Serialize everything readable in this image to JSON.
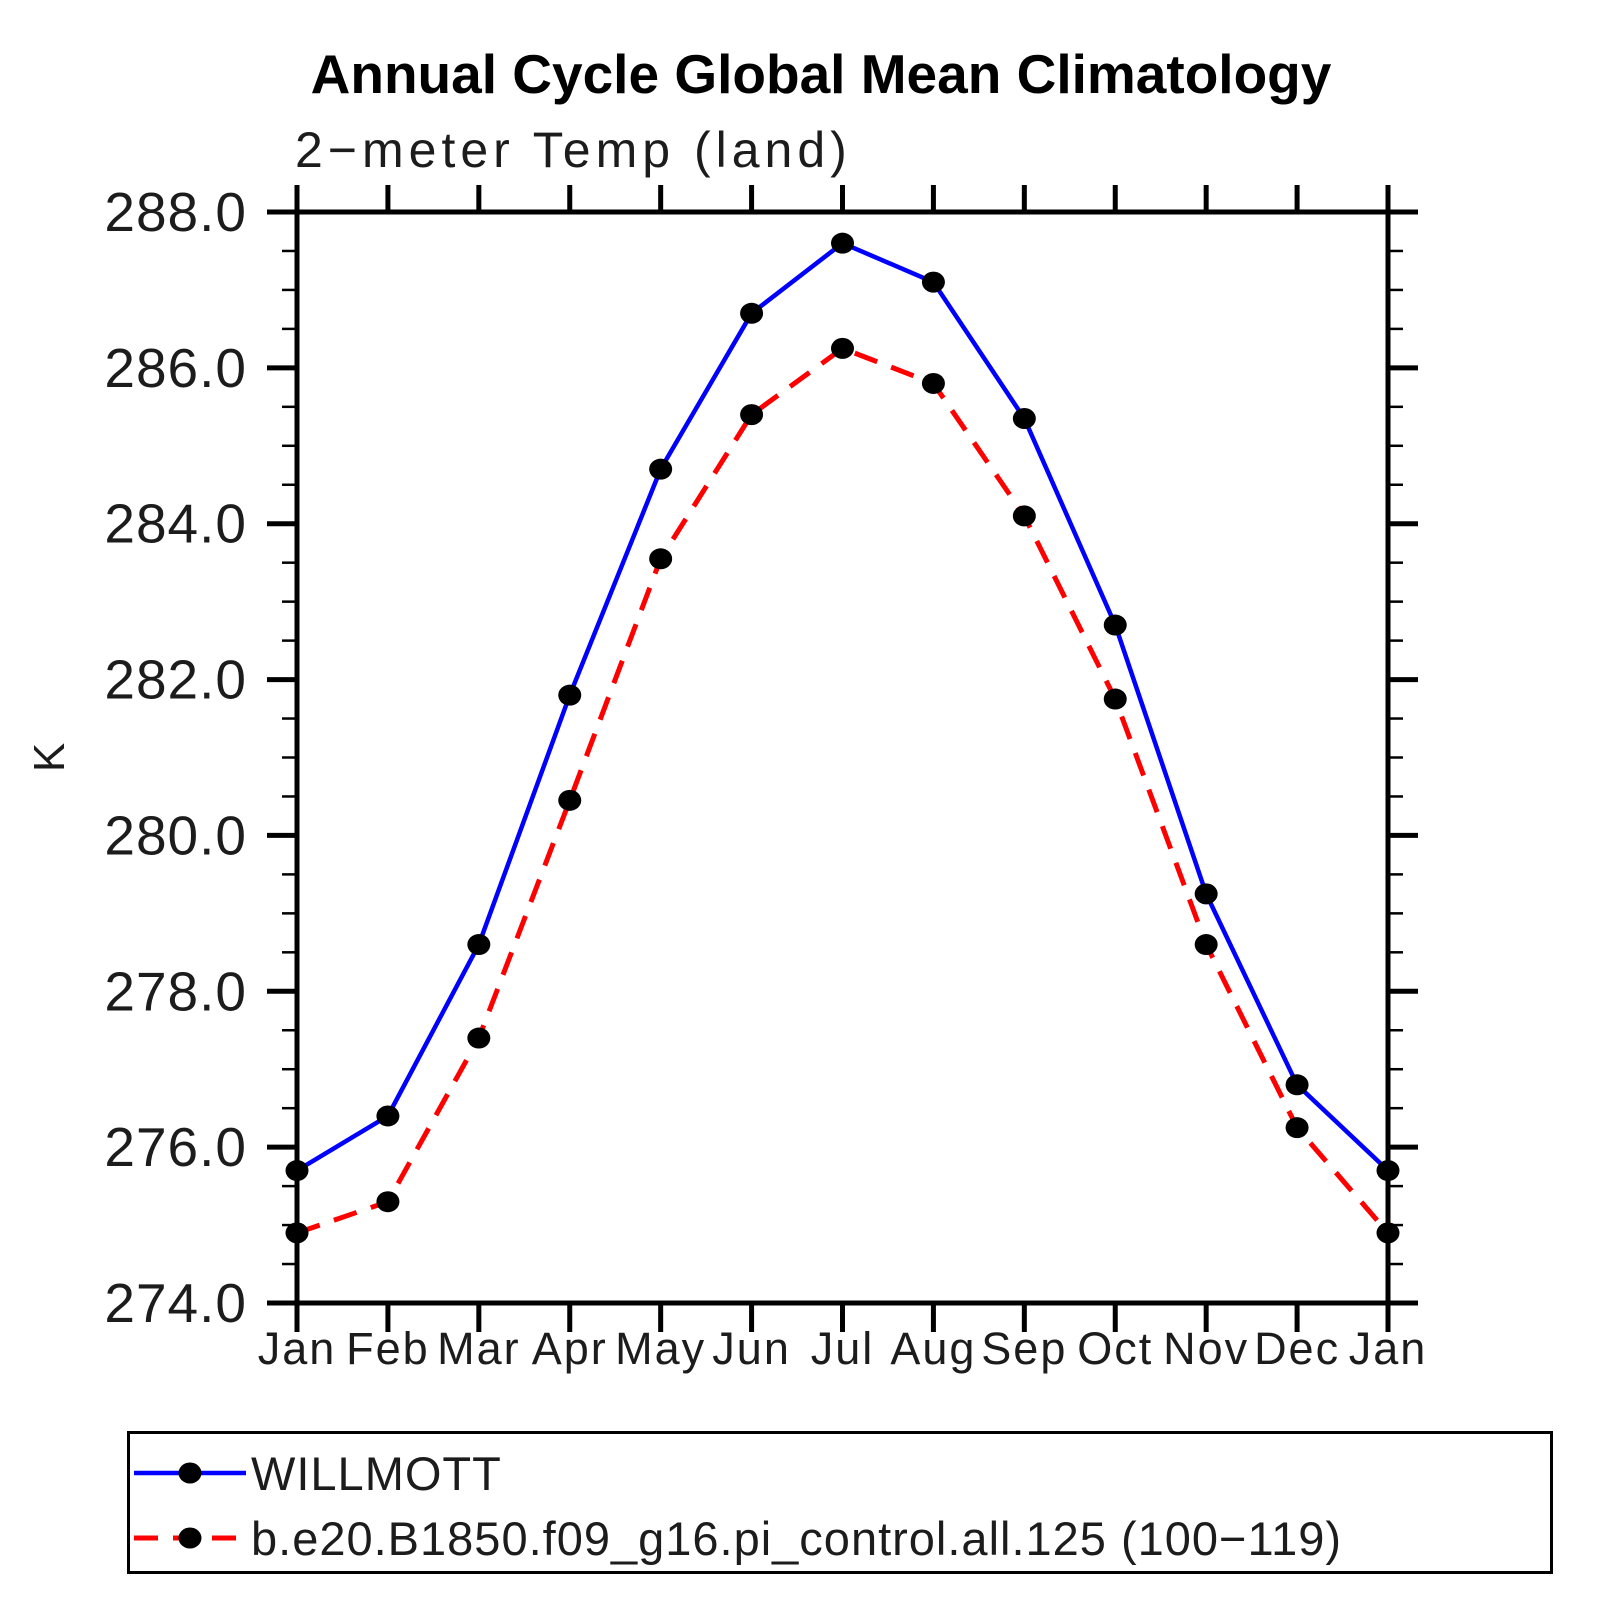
{
  "header": {
    "title": "Annual Cycle Global Mean Climatology",
    "subtitle": "2−meter Temp (land)"
  },
  "chart_data": {
    "type": "line",
    "title": "Annual Cycle Global Mean Climatology",
    "subtitle": "2−meter Temp (land)",
    "ylabel": "K",
    "ylim": [
      274.0,
      288.0
    ],
    "ymajor_step": 2.0,
    "yminor_step": 0.5,
    "ytick_labels": [
      "274.0",
      "276.0",
      "278.0",
      "280.0",
      "282.0",
      "284.0",
      "286.0",
      "288.0"
    ],
    "categories": [
      "Jan",
      "Feb",
      "Mar",
      "Apr",
      "May",
      "Jun",
      "Jul",
      "Aug",
      "Sep",
      "Oct",
      "Nov",
      "Dec",
      "Jan"
    ],
    "grid": false,
    "legend_position": "bottom-left-box",
    "axis_color": "#000000",
    "marker_color": "#000000",
    "series": [
      {
        "name": "WILLMOTT",
        "color": "#0000ff",
        "line_style": "solid",
        "marker": "filled-black-circle",
        "values": [
          275.7,
          276.4,
          278.6,
          281.8,
          284.7,
          286.7,
          287.6,
          287.1,
          285.35,
          282.7,
          279.25,
          276.8,
          275.7
        ]
      },
      {
        "name": "b.e20.B1850.f09_g16.pi_control.all.125 (100−119)",
        "color": "#ff0000",
        "line_style": "dashed",
        "marker": "filled-black-circle",
        "values": [
          274.9,
          275.3,
          277.4,
          280.45,
          283.55,
          285.4,
          286.25,
          285.8,
          284.1,
          281.75,
          278.6,
          276.25,
          274.9
        ]
      }
    ]
  }
}
